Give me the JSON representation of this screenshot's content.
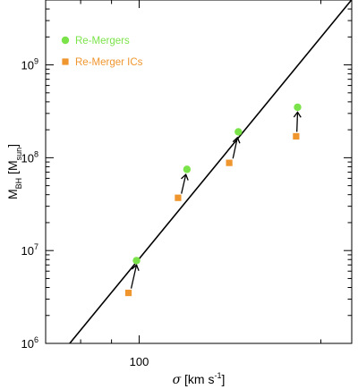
{
  "chart_data": {
    "type": "scatter",
    "xlabel": "σ [km s⁻¹]",
    "ylabel": "M_BH [M_sun]",
    "x_scale": "log",
    "y_scale": "log",
    "xlim": [
      70,
      225
    ],
    "ylim": [
      1000000,
      5000000000
    ],
    "x_ticks": [
      {
        "value": 100,
        "label": "100"
      }
    ],
    "y_ticks": [
      {
        "value": 1000000,
        "base": "10",
        "exp": "6"
      },
      {
        "value": 10000000,
        "base": "10",
        "exp": "7"
      },
      {
        "value": 100000000,
        "base": "10",
        "exp": "8"
      },
      {
        "value": 1000000000,
        "base": "10",
        "exp": "9"
      }
    ],
    "legend_position": "top-left",
    "series": [
      {
        "name": "Re-Mergers",
        "marker": "circle",
        "color": "#7be34a",
        "points": [
          {
            "x": 99,
            "y": 7800000
          },
          {
            "x": 120,
            "y": 75000000
          },
          {
            "x": 146,
            "y": 190000000
          },
          {
            "x": 183,
            "y": 350000000
          }
        ]
      },
      {
        "name": "Re-Merger ICs",
        "marker": "square",
        "color": "#f0962e",
        "points": [
          {
            "x": 96,
            "y": 3500000
          },
          {
            "x": 116,
            "y": 37000000
          },
          {
            "x": 141,
            "y": 88000000
          },
          {
            "x": 182,
            "y": 170000000
          }
        ]
      }
    ],
    "arrows": [
      {
        "from": {
          "x": 97,
          "y": 3900000
        },
        "to": {
          "x": 99,
          "y": 7000000
        }
      },
      {
        "from": {
          "x": 117.5,
          "y": 41000000
        },
        "to": {
          "x": 119.5,
          "y": 66000000
        }
      },
      {
        "from": {
          "x": 143,
          "y": 98000000
        },
        "to": {
          "x": 145.5,
          "y": 165000000
        }
      },
      {
        "from": {
          "x": 182.5,
          "y": 190000000
        },
        "to": {
          "x": 183,
          "y": 310000000
        }
      }
    ],
    "fit_line": {
      "x": [
        75.5,
        228
      ],
      "y": [
        880000,
        5600000000
      ]
    },
    "colors": {
      "frame": "#000000",
      "line": "#000000",
      "arrow": "#000000"
    }
  }
}
